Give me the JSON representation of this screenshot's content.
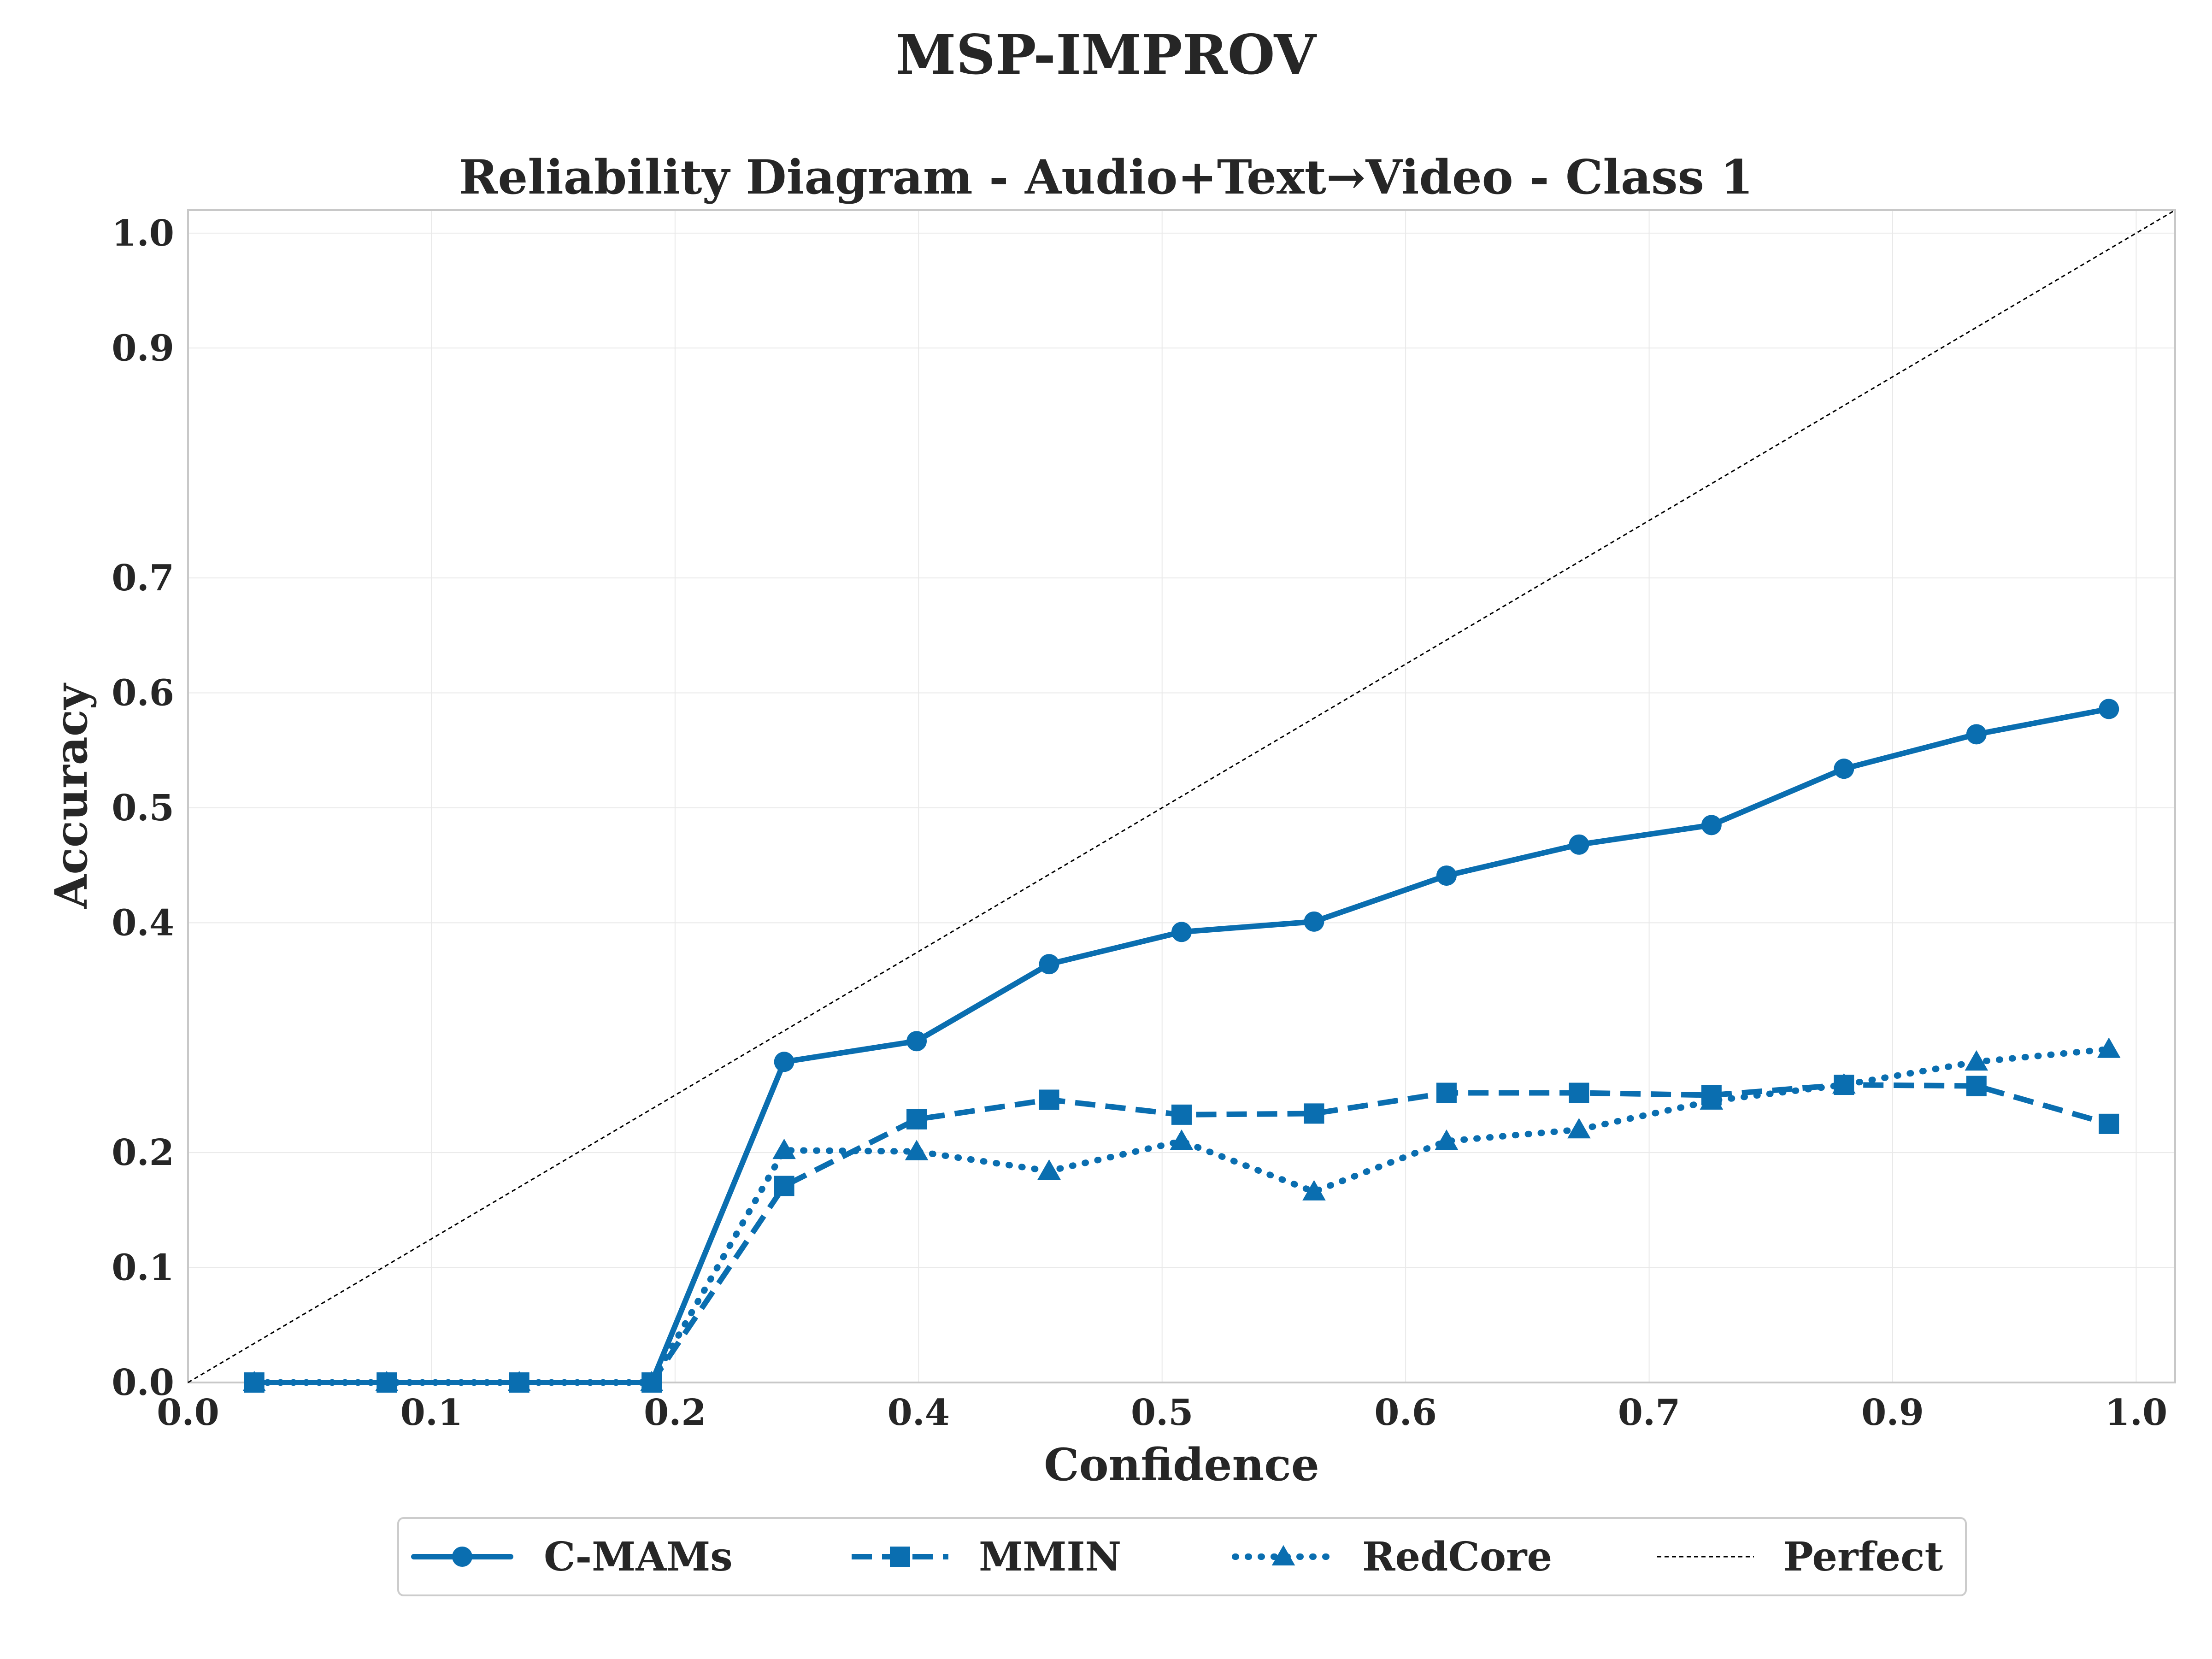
{
  "figure": {
    "suptitle": "MSP-IMPROV",
    "title": "Reliability Diagram - Audio+Text→Video - Class 1"
  },
  "colors": {
    "series": "#0a6eb0",
    "perfect": "#000000"
  },
  "chart_data": {
    "type": "line",
    "title": "Reliability Diagram - Audio+Text→Video - Class 1",
    "xlabel": "Confidence",
    "ylabel": "Accuracy",
    "xlim": [
      0.0,
      1.02
    ],
    "ylim": [
      0.0,
      1.02
    ],
    "grid": true,
    "legend_position": "bottom-center",
    "xticks": [
      {
        "value": 0.0,
        "label": "0.0"
      },
      {
        "value": 0.125,
        "label": "0.1"
      },
      {
        "value": 0.25,
        "label": "0.2"
      },
      {
        "value": 0.375,
        "label": "0.4"
      },
      {
        "value": 0.5,
        "label": "0.5"
      },
      {
        "value": 0.625,
        "label": "0.6"
      },
      {
        "value": 0.75,
        "label": "0.7"
      },
      {
        "value": 0.875,
        "label": "0.9"
      },
      {
        "value": 1.0,
        "label": "1.0"
      }
    ],
    "yticks": [
      {
        "value": 0.0,
        "label": "0.0"
      },
      {
        "value": 0.1,
        "label": "0.1"
      },
      {
        "value": 0.2,
        "label": "0.2"
      },
      {
        "value": 0.4,
        "label": "0.4"
      },
      {
        "value": 0.5,
        "label": "0.5"
      },
      {
        "value": 0.6,
        "label": "0.6"
      },
      {
        "value": 0.7,
        "label": "0.7"
      },
      {
        "value": 0.9,
        "label": "0.9"
      },
      {
        "value": 1.0,
        "label": "1.0"
      }
    ],
    "series": [
      {
        "name": "C-MAMs",
        "style": "solid",
        "marker": "circle",
        "x": [
          0.034,
          0.102,
          0.17,
          0.238,
          0.306,
          0.374,
          0.442,
          0.51,
          0.578,
          0.646,
          0.714,
          0.782,
          0.85,
          0.918,
          0.986
        ],
        "y": [
          0.0,
          0.0,
          0.0,
          0.0,
          0.279,
          0.297,
          0.364,
          0.392,
          0.401,
          0.441,
          0.468,
          0.485,
          0.534,
          0.564,
          0.586
        ]
      },
      {
        "name": "MMIN",
        "style": "dashed",
        "marker": "square",
        "x": [
          0.034,
          0.102,
          0.17,
          0.238,
          0.306,
          0.374,
          0.442,
          0.51,
          0.578,
          0.646,
          0.714,
          0.782,
          0.85,
          0.918,
          0.986
        ],
        "y": [
          0.0,
          0.0,
          0.0,
          0.0,
          0.171,
          0.229,
          0.246,
          0.233,
          0.234,
          0.252,
          0.252,
          0.25,
          0.259,
          0.258,
          0.225
        ]
      },
      {
        "name": "RedCore",
        "style": "dotted",
        "marker": "triangle",
        "x": [
          0.034,
          0.102,
          0.17,
          0.238,
          0.306,
          0.374,
          0.442,
          0.51,
          0.578,
          0.646,
          0.714,
          0.782,
          0.85,
          0.918,
          0.986
        ],
        "y": [
          0.0,
          0.0,
          0.0,
          0.0,
          0.202,
          0.201,
          0.184,
          0.21,
          0.166,
          0.21,
          0.22,
          0.245,
          0.259,
          0.279,
          0.29
        ]
      },
      {
        "name": "Perfect",
        "style": "thin-dashed",
        "marker": "none",
        "x": [
          0.0,
          1.02
        ],
        "y": [
          0.0,
          1.02
        ]
      }
    ]
  }
}
